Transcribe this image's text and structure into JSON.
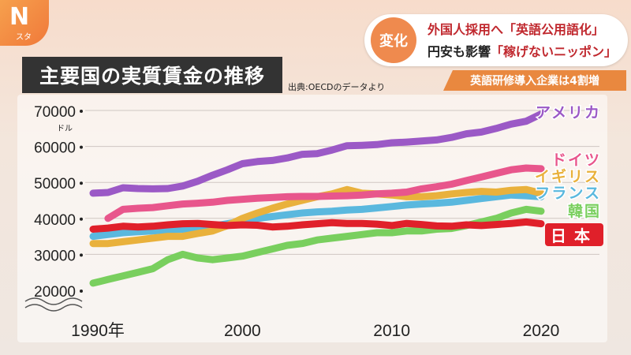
{
  "logo": {
    "mark": "N",
    "sub": "スタ"
  },
  "topic": {
    "badge": "変化",
    "line1": "外国人採用へ「英語公用語化」",
    "line2_prefix": "円安も影響",
    "line2_highlight": "「稼げないニッポン」"
  },
  "title": "主要国の実質賃金の推移",
  "source": "出典:OECDのデータより",
  "sub_headline": "英語研修導入企業は4割増",
  "colors": {
    "アメリカ": "#9b59c6",
    "ドイツ": "#e8568c",
    "イギリス": "#e9b13c",
    "フランス": "#5ab8de",
    "韓国": "#79cf5e",
    "日本": "#e0202a"
  },
  "chart_data": {
    "type": "line",
    "title": "主要国の実質賃金の推移",
    "ylabel": "ドル",
    "ylim": [
      20000,
      70000
    ],
    "y_ticks": [
      20000,
      30000,
      40000,
      50000,
      60000,
      70000
    ],
    "y_tick_labels": [
      "20000",
      "30000",
      "40000",
      "50000",
      "60000",
      "70000"
    ],
    "y_unit_label": "ドル",
    "x_ticks": [
      1990,
      2000,
      2010,
      2020
    ],
    "x_tick_labels": [
      "1990年",
      "2000",
      "2010",
      "2020"
    ],
    "xlim": [
      1990,
      2020
    ],
    "series": [
      {
        "name": "アメリカ",
        "x": [
          1990,
          1991,
          1992,
          1993,
          1994,
          1995,
          1996,
          1997,
          1998,
          1999,
          2000,
          2001,
          2002,
          2003,
          2004,
          2005,
          2006,
          2007,
          2008,
          2009,
          2010,
          2011,
          2012,
          2013,
          2014,
          2015,
          2016,
          2017,
          2018,
          2019,
          2020
        ],
        "values": [
          47000,
          47200,
          48500,
          48300,
          48200,
          48300,
          49000,
          50300,
          52000,
          53500,
          55200,
          55800,
          56100,
          56800,
          57800,
          58000,
          59000,
          60200,
          60300,
          60500,
          61000,
          61200,
          61500,
          61800,
          62500,
          63500,
          64000,
          65000,
          66200,
          67000,
          69000
        ]
      },
      {
        "name": "ドイツ",
        "x": [
          1991,
          1992,
          1993,
          1994,
          1995,
          1996,
          1997,
          1998,
          1999,
          2000,
          2001,
          2002,
          2003,
          2004,
          2005,
          2006,
          2007,
          2008,
          2009,
          2010,
          2011,
          2012,
          2013,
          2014,
          2015,
          2016,
          2017,
          2018,
          2019,
          2020
        ],
        "values": [
          40000,
          42500,
          42800,
          43000,
          43500,
          44000,
          44200,
          44500,
          45000,
          45300,
          45600,
          45800,
          46000,
          46100,
          46100,
          46200,
          46300,
          46500,
          46800,
          47000,
          47300,
          48200,
          48800,
          49500,
          50500,
          51500,
          52500,
          53500,
          54000,
          53800
        ]
      },
      {
        "name": "イギリス",
        "x": [
          1990,
          1991,
          1992,
          1993,
          1994,
          1995,
          1996,
          1997,
          1998,
          1999,
          2000,
          2001,
          2002,
          2003,
          2004,
          2005,
          2006,
          2007,
          2008,
          2009,
          2010,
          2011,
          2012,
          2013,
          2014,
          2015,
          2016,
          2017,
          2018,
          2019,
          2020
        ],
        "values": [
          33000,
          33000,
          33500,
          34000,
          34500,
          35000,
          35000,
          35800,
          36500,
          38000,
          40000,
          41500,
          42800,
          44000,
          45000,
          46000,
          46800,
          48000,
          47000,
          46800,
          46500,
          46000,
          46000,
          46300,
          46800,
          47200,
          47500,
          47300,
          47800,
          48000,
          47000
        ]
      },
      {
        "name": "フランス",
        "x": [
          1990,
          1991,
          1992,
          1993,
          1994,
          1995,
          1996,
          1997,
          1998,
          1999,
          2000,
          2001,
          2002,
          2003,
          2004,
          2005,
          2006,
          2007,
          2008,
          2009,
          2010,
          2011,
          2012,
          2013,
          2014,
          2015,
          2016,
          2017,
          2018,
          2019,
          2020
        ],
        "values": [
          35000,
          35500,
          36000,
          36300,
          36500,
          36800,
          37000,
          37300,
          37800,
          38500,
          39300,
          40000,
          40500,
          41000,
          41500,
          41800,
          42000,
          42300,
          42500,
          42900,
          43300,
          43700,
          44000,
          44200,
          44500,
          45000,
          45500,
          46000,
          46500,
          46300,
          46000
        ]
      },
      {
        "name": "韓国",
        "x": [
          1990,
          1991,
          1992,
          1993,
          1994,
          1995,
          1996,
          1997,
          1998,
          1999,
          2000,
          2001,
          2002,
          2003,
          2004,
          2005,
          2006,
          2007,
          2008,
          2009,
          2010,
          2011,
          2012,
          2013,
          2014,
          2015,
          2016,
          2017,
          2018,
          2019,
          2020
        ],
        "values": [
          22000,
          23000,
          24000,
          25000,
          26000,
          28500,
          30000,
          29000,
          28500,
          29000,
          29500,
          30500,
          31500,
          32500,
          33000,
          34000,
          34500,
          35000,
          35500,
          36000,
          36000,
          36500,
          36500,
          37000,
          37200,
          38000,
          39000,
          40000,
          41500,
          42500,
          42000
        ]
      },
      {
        "name": "日本",
        "x": [
          1990,
          1991,
          1992,
          1993,
          1994,
          1995,
          1996,
          1997,
          1998,
          1999,
          2000,
          2001,
          2002,
          2003,
          2004,
          2005,
          2006,
          2007,
          2008,
          2009,
          2010,
          2011,
          2012,
          2013,
          2014,
          2015,
          2016,
          2017,
          2018,
          2019,
          2020
        ],
        "values": [
          37000,
          37300,
          37800,
          37600,
          37800,
          38200,
          38500,
          38600,
          38300,
          38000,
          38200,
          38100,
          37600,
          37800,
          38200,
          38500,
          38800,
          38600,
          38600,
          38400,
          38000,
          38600,
          38300,
          37900,
          37800,
          38200,
          38000,
          38300,
          38600,
          39000,
          38500
        ]
      }
    ],
    "legend_position": "right"
  }
}
